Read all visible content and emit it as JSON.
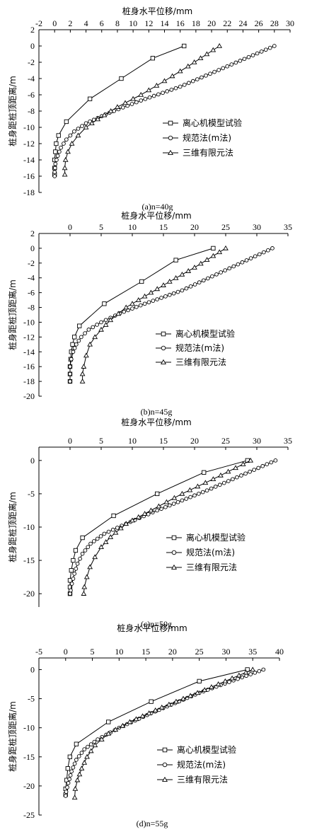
{
  "legend_entries": [
    "离心机模型试验",
    "规范法(m法)",
    "三维有限元法"
  ],
  "chart_data": [
    {
      "type": "line",
      "caption": "(a)n=40g",
      "xlabel": "桩身水平位移/mm",
      "ylabel": "桩身距桩顶距离/m",
      "xlim": [
        -2,
        30
      ],
      "ylim": [
        -18,
        2
      ],
      "xticks": [
        -2,
        0,
        2,
        4,
        6,
        8,
        10,
        12,
        14,
        16,
        18,
        20,
        22,
        24,
        26,
        28,
        30
      ],
      "yticks": [
        -18,
        -16,
        -14,
        -12,
        -10,
        -8,
        -6,
        -4,
        -2,
        0,
        2
      ],
      "series": [
        {
          "name": "离心机模型试验",
          "marker": "square",
          "points": [
            [
              16.5,
              0
            ],
            [
              12.5,
              -1.5
            ],
            [
              8.5,
              -4
            ],
            [
              4.5,
              -6.5
            ],
            [
              1.5,
              -9.3
            ],
            [
              0.5,
              -11
            ],
            [
              0.2,
              -12
            ],
            [
              0.1,
              -13
            ],
            [
              0,
              -14
            ],
            [
              0,
              -15
            ],
            [
              0,
              -15.8
            ]
          ]
        },
        {
          "name": "规范法(m法)",
          "marker": "circle",
          "points": [
            [
              28,
              0
            ],
            [
              16,
              -5
            ],
            [
              11,
              -6.7
            ],
            [
              7,
              -8.2
            ],
            [
              4,
              -9.5
            ],
            [
              2.5,
              -10.5
            ],
            [
              1.5,
              -11.5
            ],
            [
              0.8,
              -12.5
            ],
            [
              0.4,
              -13.5
            ],
            [
              0.1,
              -14.5
            ],
            [
              0,
              -15.5
            ],
            [
              0,
              -16
            ]
          ]
        },
        {
          "name": "三维有限元法",
          "marker": "triangle",
          "points": [
            [
              21,
              0
            ],
            [
              17,
              -2.5
            ],
            [
              14,
              -4.3
            ],
            [
              11,
              -6
            ],
            [
              8,
              -7.5
            ],
            [
              5.5,
              -9
            ],
            [
              4,
              -10
            ],
            [
              3,
              -11
            ],
            [
              2.2,
              -12
            ],
            [
              1.7,
              -13
            ],
            [
              1.4,
              -14
            ],
            [
              1.3,
              -15
            ],
            [
              1.3,
              -15.8
            ]
          ]
        }
      ]
    },
    {
      "type": "line",
      "caption": "(b)n=45g",
      "xlabel": "桩身水平位移/mm",
      "ylabel": "桩身距桩顶距离/m",
      "xlim": [
        -5,
        35
      ],
      "ylim": [
        -20,
        2
      ],
      "xticks": [
        0,
        5,
        10,
        15,
        20,
        25,
        30,
        35
      ],
      "yticks": [
        -20,
        -18,
        -16,
        -14,
        -12,
        -10,
        -8,
        -6,
        -4,
        -2,
        0,
        2
      ],
      "series": [
        {
          "name": "离心机模型试验",
          "marker": "square",
          "points": [
            [
              23,
              0
            ],
            [
              17,
              -1.6
            ],
            [
              11.5,
              -4.5
            ],
            [
              5.5,
              -7.5
            ],
            [
              1.5,
              -10.5
            ],
            [
              0.7,
              -12
            ],
            [
              0.4,
              -13
            ],
            [
              0.2,
              -14
            ],
            [
              0.1,
              -15
            ],
            [
              0,
              -16
            ],
            [
              0,
              -17
            ],
            [
              0,
              -18
            ]
          ]
        },
        {
          "name": "规范法(m法)",
          "marker": "circle",
          "points": [
            [
              32.5,
              0
            ],
            [
              18,
              -5.7
            ],
            [
              12,
              -7.5
            ],
            [
              8,
              -8.8
            ],
            [
              5,
              -10
            ],
            [
              3,
              -11
            ],
            [
              1.8,
              -12
            ],
            [
              1,
              -13
            ],
            [
              0.5,
              -14
            ],
            [
              0.2,
              -15
            ],
            [
              0,
              -16
            ],
            [
              0,
              -17
            ],
            [
              0,
              -18
            ]
          ]
        },
        {
          "name": "三维有限元法",
          "marker": "triangle",
          "points": [
            [
              25,
              0
            ],
            [
              20,
              -2.6
            ],
            [
              16,
              -4.5
            ],
            [
              12,
              -6.5
            ],
            [
              9,
              -8
            ],
            [
              6.5,
              -9.7
            ],
            [
              5,
              -11
            ],
            [
              4,
              -12
            ],
            [
              3.2,
              -13
            ],
            [
              2.6,
              -14.5
            ],
            [
              2.2,
              -16
            ],
            [
              2,
              -17
            ],
            [
              2,
              -18
            ]
          ]
        }
      ]
    },
    {
      "type": "line",
      "caption": "(c)n=50g",
      "xlabel": "桩身水平位移/mm",
      "ylabel": "桩身距桩顶距离/m",
      "xlim": [
        -5,
        35
      ],
      "ylim": [
        -22,
        2
      ],
      "xticks": [
        0,
        5,
        10,
        15,
        20,
        25,
        30,
        35
      ],
      "yticks": [
        -20,
        -15,
        -10,
        -5,
        0
      ],
      "series": [
        {
          "name": "离心机模型试验",
          "marker": "square",
          "points": [
            [
              28.5,
              0
            ],
            [
              21.5,
              -1.8
            ],
            [
              14,
              -5
            ],
            [
              7,
              -8.3
            ],
            [
              2,
              -11.6
            ],
            [
              0.9,
              -13.5
            ],
            [
              0.5,
              -15
            ],
            [
              0.2,
              -16.5
            ],
            [
              0,
              -18
            ],
            [
              0,
              -19
            ],
            [
              0,
              -20
            ]
          ]
        },
        {
          "name": "规范法(m法)",
          "marker": "circle",
          "points": [
            [
              33,
              0
            ],
            [
              22,
              -4.5
            ],
            [
              14,
              -7.5
            ],
            [
              9,
              -9.5
            ],
            [
              5.5,
              -11
            ],
            [
              3.3,
              -12.5
            ],
            [
              2,
              -14
            ],
            [
              1.2,
              -15.5
            ],
            [
              0.7,
              -17
            ],
            [
              0.3,
              -18.5
            ],
            [
              0.1,
              -19.5
            ],
            [
              0,
              -20
            ]
          ]
        },
        {
          "name": "三维有限元法",
          "marker": "triangle",
          "points": [
            [
              29,
              0
            ],
            [
              23,
              -2.8
            ],
            [
              18,
              -5
            ],
            [
              13,
              -7.5
            ],
            [
              9,
              -9.5
            ],
            [
              6.5,
              -11.5
            ],
            [
              5,
              -13
            ],
            [
              4,
              -14.5
            ],
            [
              3.2,
              -16
            ],
            [
              2.7,
              -17.5
            ],
            [
              2.3,
              -19
            ],
            [
              2.2,
              -20
            ]
          ]
        }
      ]
    },
    {
      "type": "line",
      "caption": "(d)n=55g",
      "xlabel": "桩身水平位移/mm",
      "ylabel": "桩身距桩顶距离/m",
      "xlim": [
        -5,
        40
      ],
      "ylim": [
        -25,
        2
      ],
      "xticks": [
        -5,
        0,
        5,
        10,
        15,
        20,
        25,
        30,
        35,
        40
      ],
      "yticks": [
        -25,
        -20,
        -15,
        -10,
        -5,
        0
      ],
      "series": [
        {
          "name": "离心机模型试验",
          "marker": "square",
          "points": [
            [
              34,
              0
            ],
            [
              25,
              -2
            ],
            [
              16,
              -5.5
            ],
            [
              8,
              -9
            ],
            [
              2,
              -12.8
            ],
            [
              0.8,
              -15
            ],
            [
              0.4,
              -17
            ],
            [
              0.2,
              -19
            ],
            [
              0,
              -20.5
            ],
            [
              0,
              -21.5
            ]
          ]
        },
        {
          "name": "规范法(m法)",
          "marker": "circle",
          "points": [
            [
              37,
              0
            ],
            [
              25,
              -4
            ],
            [
              16,
              -7.5
            ],
            [
              10,
              -10
            ],
            [
              6,
              -12
            ],
            [
              3.5,
              -13.7
            ],
            [
              2,
              -15.5
            ],
            [
              1.1,
              -17.5
            ],
            [
              0.5,
              -19.5
            ],
            [
              0.1,
              -21
            ],
            [
              0,
              -21.7
            ]
          ]
        },
        {
          "name": "三维有限元法",
          "marker": "triangle",
          "points": [
            [
              35,
              0
            ],
            [
              26,
              -3.5
            ],
            [
              18,
              -6.5
            ],
            [
              12,
              -9
            ],
            [
              8,
              -11
            ],
            [
              5.5,
              -13
            ],
            [
              4,
              -15
            ],
            [
              3,
              -17
            ],
            [
              2.2,
              -19
            ],
            [
              1.8,
              -20.5
            ],
            [
              1.7,
              -22
            ]
          ]
        }
      ]
    }
  ]
}
